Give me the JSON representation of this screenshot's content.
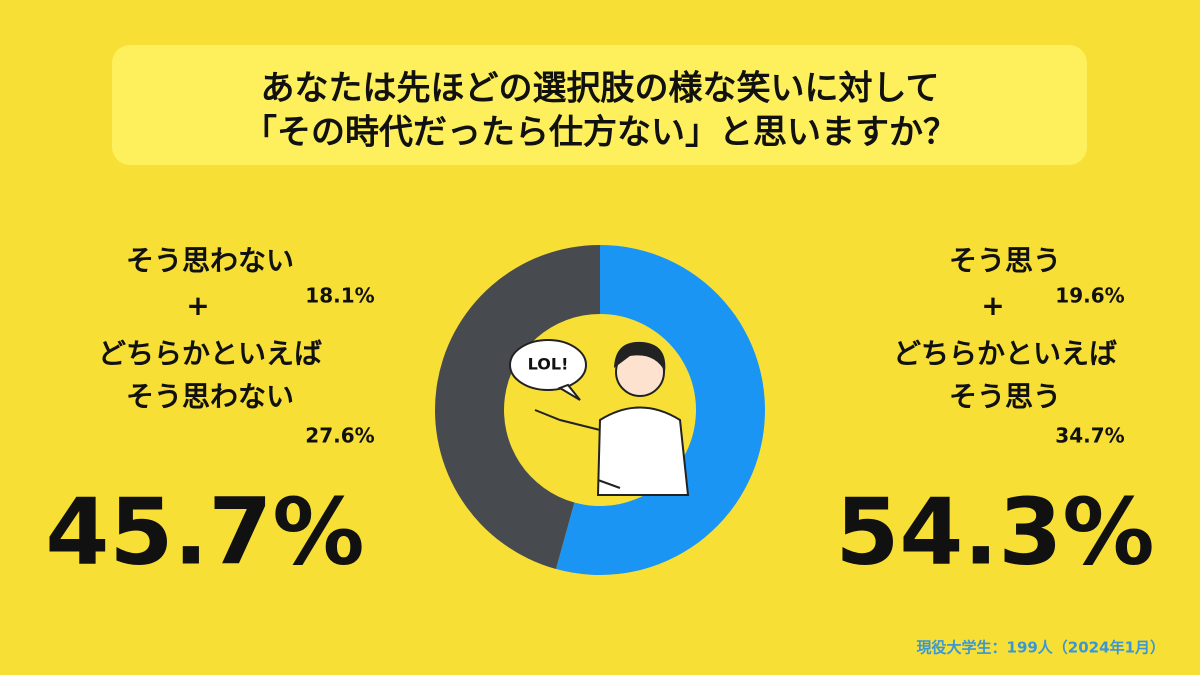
{
  "chart_data": {
    "type": "donut",
    "title": [
      "あなたは先ほどの選択肢の様な笑いに対して",
      "「その時代だったら仕方ない」と思いますか？"
    ],
    "values": [
      54.3,
      45.7
    ],
    "value_labels": [
      "54.3%",
      "45.7%"
    ],
    "colors": [
      "#1b95f4",
      "#474a4f"
    ],
    "groups": [
      {
        "plus": "+",
        "parts": [
          {
            "label": [
              "そう思う"
            ],
            "value": 19.6,
            "value_label": "19.6%"
          },
          {
            "label": [
              "どちらかといえば",
              "そう思う"
            ],
            "value": 34.7,
            "value_label": "34.7%"
          }
        ]
      },
      {
        "plus": "+",
        "parts": [
          {
            "label": [
              "そう思わない"
            ],
            "value": 18.1,
            "value_label": "18.1%"
          },
          {
            "label": [
              "どちらかといえば",
              "そう思わない"
            ],
            "value": 27.6,
            "value_label": "27.6%"
          }
        ]
      }
    ],
    "bubble_text": "LOL!",
    "source": "現役大学生：199人（2024年1月）"
  }
}
